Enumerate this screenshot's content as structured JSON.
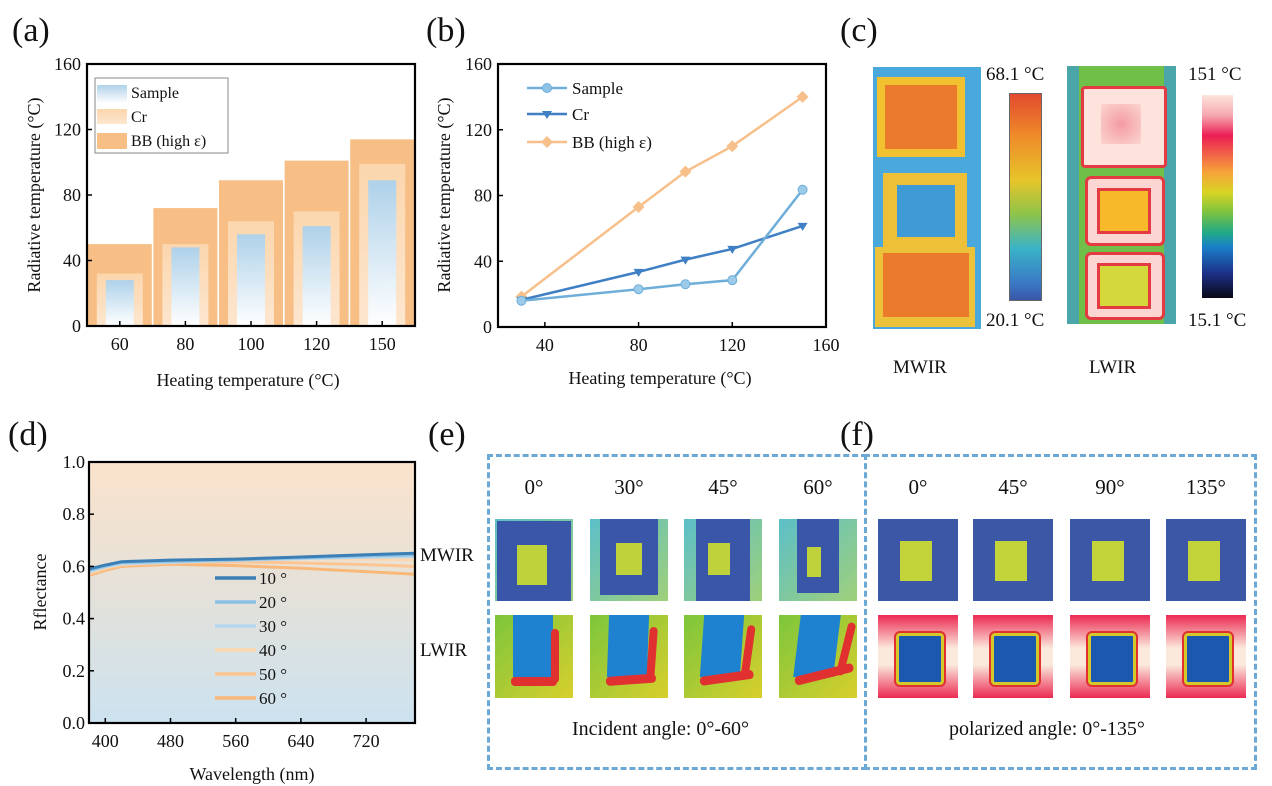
{
  "panels": {
    "a": {
      "label": "(a)"
    },
    "b": {
      "label": "(b)"
    },
    "c": {
      "label": "(c)"
    },
    "d": {
      "label": "(d)"
    },
    "e": {
      "label": "(e)"
    },
    "f": {
      "label": "(f)"
    }
  },
  "chart_data": [
    {
      "id": "a",
      "type": "bar",
      "title": "",
      "xlabel": "Heating temperature (°C)",
      "ylabel": "Radiative temperature (°C)",
      "categories": [
        "60",
        "80",
        "100",
        "120",
        "150"
      ],
      "ylim": [
        0,
        160
      ],
      "yticks": [
        "0",
        "40",
        "80",
        "120",
        "160"
      ],
      "legend_position": "top-left",
      "series": [
        {
          "name": "BB (high ε)",
          "color": "#f7bf85",
          "values": [
            50,
            72,
            89,
            101,
            114
          ]
        },
        {
          "name": "Cr",
          "color": "#fbd9b5",
          "values": [
            32,
            50,
            64,
            70,
            99
          ]
        },
        {
          "name": "Sample",
          "color": "#b3d4ea",
          "values": [
            28,
            48,
            56,
            61,
            89
          ]
        }
      ],
      "legend": [
        "Sample",
        "Cr",
        "BB (high ε)"
      ]
    },
    {
      "id": "b",
      "type": "line",
      "title": "",
      "xlabel": "Heating temperature (°C)",
      "ylabel": "Radiative temperature (°C)",
      "x": [
        30,
        80,
        100,
        120,
        150
      ],
      "xlim": [
        20,
        160
      ],
      "ylim": [
        0,
        160
      ],
      "xticks": [
        "40",
        "80",
        "120",
        "160"
      ],
      "yticks": [
        "0",
        "40",
        "80",
        "120",
        "160"
      ],
      "legend_position": "top-left",
      "series": [
        {
          "name": "Sample",
          "color": "#6eaed8",
          "marker": "circle",
          "values": [
            16,
            23,
            26,
            28.5,
            83.5
          ]
        },
        {
          "name": "Cr",
          "color": "#3f7fc4",
          "marker": "triangle-down",
          "values": [
            16.5,
            33.5,
            41,
            47.5,
            61.5
          ]
        },
        {
          "name": "BB (high ε)",
          "color": "#f7c08a",
          "marker": "diamond",
          "values": [
            18.5,
            73,
            94.5,
            110,
            140
          ]
        }
      ]
    },
    {
      "id": "d",
      "type": "line",
      "title": "",
      "xlabel": "Wavelength (nm)",
      "ylabel": "Rflectance",
      "x": [
        380,
        400,
        420,
        480,
        560,
        640,
        720,
        780
      ],
      "xlim": [
        380,
        780
      ],
      "ylim": [
        0,
        1.0
      ],
      "xticks": [
        "400",
        "480",
        "560",
        "640",
        "720"
      ],
      "yticks": [
        "0.0",
        "0.2",
        "0.4",
        "0.6",
        "0.8",
        "1.0"
      ],
      "legend_position": "center",
      "series": [
        {
          "name": "10 °",
          "color": "#3b7fb5",
          "values": [
            0.59,
            0.605,
            0.618,
            0.624,
            0.628,
            0.636,
            0.645,
            0.65
          ]
        },
        {
          "name": "20 °",
          "color": "#8cc1e3",
          "values": [
            0.585,
            0.602,
            0.615,
            0.62,
            0.625,
            0.633,
            0.64,
            0.645
          ]
        },
        {
          "name": "30 °",
          "color": "#b7d7ee",
          "values": [
            0.58,
            0.598,
            0.61,
            0.616,
            0.623,
            0.63,
            0.635,
            0.638
          ]
        },
        {
          "name": "40 °",
          "color": "#fcd8b0",
          "values": [
            0.575,
            0.595,
            0.608,
            0.618,
            0.63,
            0.63,
            0.628,
            0.625
          ]
        },
        {
          "name": "50 °",
          "color": "#fcc592",
          "values": [
            0.57,
            0.59,
            0.605,
            0.613,
            0.618,
            0.613,
            0.607,
            0.6
          ]
        },
        {
          "name": "60 °",
          "color": "#f9b87a",
          "values": [
            0.565,
            0.585,
            0.6,
            0.608,
            0.603,
            0.593,
            0.58,
            0.57
          ]
        }
      ]
    }
  ],
  "thermal_c": {
    "mwir": {
      "label": "MWIR",
      "max": "68.1 °C",
      "min": "20.1 °C"
    },
    "lwir": {
      "label": "LWIR",
      "max": "151 °C",
      "min": "15.1 °C"
    }
  },
  "panel_e": {
    "angles": [
      "0°",
      "30°",
      "45°",
      "60°"
    ],
    "row_labels": [
      "MWIR",
      "LWIR"
    ],
    "caption": "Incident angle: 0°-60°"
  },
  "panel_f": {
    "angles": [
      "0°",
      "45°",
      "90°",
      "135°"
    ],
    "caption": "polarized angle: 0°-135°"
  },
  "colors": {
    "dash_border": "#6aa9d6"
  }
}
